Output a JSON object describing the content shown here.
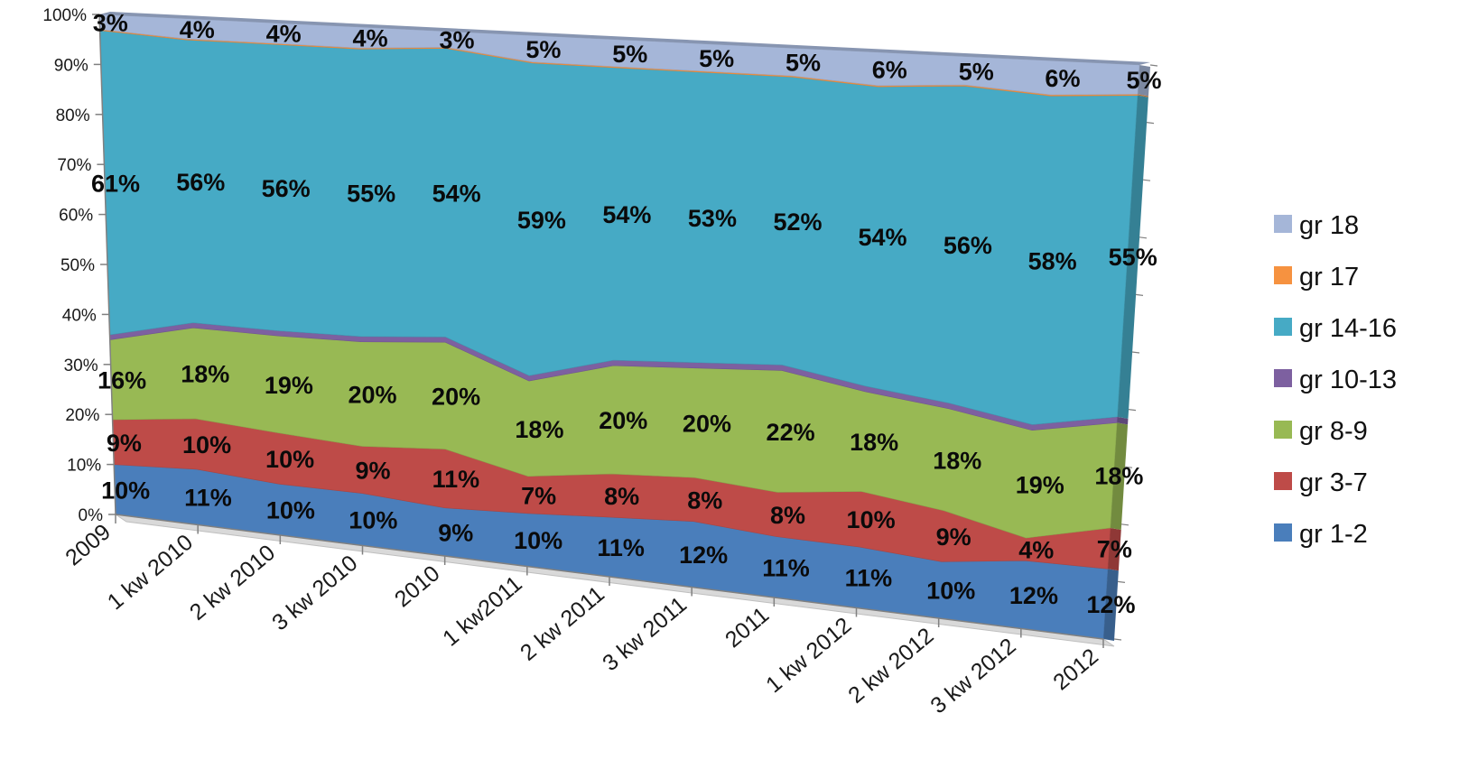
{
  "chart_data": {
    "type": "area",
    "stacked": true,
    "percent_stacked": true,
    "three_d": true,
    "categories": [
      "2009",
      "1 kw 2010",
      "2 kw 2010",
      "3 kw 2010",
      "2010",
      "1 kw2011",
      "2 kw 2011",
      "3 kw 2011",
      "2011",
      "1 kw 2012",
      "2 kw 2012",
      "3 kw 2012",
      "2012"
    ],
    "yticks": [
      "0%",
      "10%",
      "20%",
      "30%",
      "40%",
      "50%",
      "60%",
      "70%",
      "80%",
      "90%",
      "100%"
    ],
    "ylim": [
      0,
      100
    ],
    "legend_position": "right",
    "series": [
      {
        "name": "gr 1-2",
        "color": "#4a7ebb",
        "values": [
          10,
          11,
          10,
          10,
          9,
          10,
          11,
          12,
          11,
          11,
          10,
          12,
          12
        ],
        "labels": [
          "10%",
          "11%",
          "10%",
          "10%",
          "9%",
          "10%",
          "11%",
          "12%",
          "11%",
          "11%",
          "10%",
          "12%",
          "12%"
        ]
      },
      {
        "name": "gr 3-7",
        "color": "#be4b48",
        "values": [
          9,
          10,
          10,
          9,
          11,
          7,
          8,
          8,
          8,
          10,
          9,
          4,
          7
        ],
        "labels": [
          "9%",
          "10%",
          "10%",
          "9%",
          "11%",
          "7%",
          "8%",
          "8%",
          "8%",
          "10%",
          "9%",
          "4%",
          "7%"
        ]
      },
      {
        "name": "gr 8-9",
        "color": "#98b954",
        "values": [
          16,
          18,
          19,
          20,
          20,
          18,
          20,
          20,
          22,
          18,
          18,
          19,
          18
        ],
        "labels": [
          "16%",
          "18%",
          "19%",
          "20%",
          "20%",
          "18%",
          "20%",
          "20%",
          "22%",
          "18%",
          "18%",
          "19%",
          "18%"
        ]
      },
      {
        "name": "gr 10-13",
        "color": "#7d60a0",
        "values": [
          1,
          1,
          1,
          1,
          1,
          1,
          1,
          1,
          1,
          1,
          1,
          1,
          1
        ]
      },
      {
        "name": "gr 14-16",
        "color": "#46aac5",
        "values": [
          61,
          56,
          56,
          55,
          54,
          59,
          54,
          53,
          52,
          54,
          56,
          58,
          55
        ],
        "labels": [
          "61%",
          "56%",
          "56%",
          "55%",
          "54%",
          "59%",
          "54%",
          "53%",
          "52%",
          "54%",
          "56%",
          "58%",
          "55%"
        ]
      },
      {
        "name": "gr 17",
        "color": "#f69240",
        "values": [
          0.2,
          0.2,
          0.2,
          0.2,
          0.2,
          0.2,
          0.2,
          0.2,
          0.2,
          0.2,
          0.2,
          0.2,
          0.2
        ]
      },
      {
        "name": "gr 18",
        "color": "#a5b6d8",
        "values": [
          3,
          4,
          4,
          4,
          3,
          5,
          5,
          5,
          5,
          6,
          5,
          6,
          5
        ],
        "labels": [
          "3%",
          "4%",
          "4%",
          "4%",
          "3%",
          "5%",
          "5%",
          "5%",
          "5%",
          "6%",
          "5%",
          "6%",
          "5%"
        ]
      }
    ]
  }
}
